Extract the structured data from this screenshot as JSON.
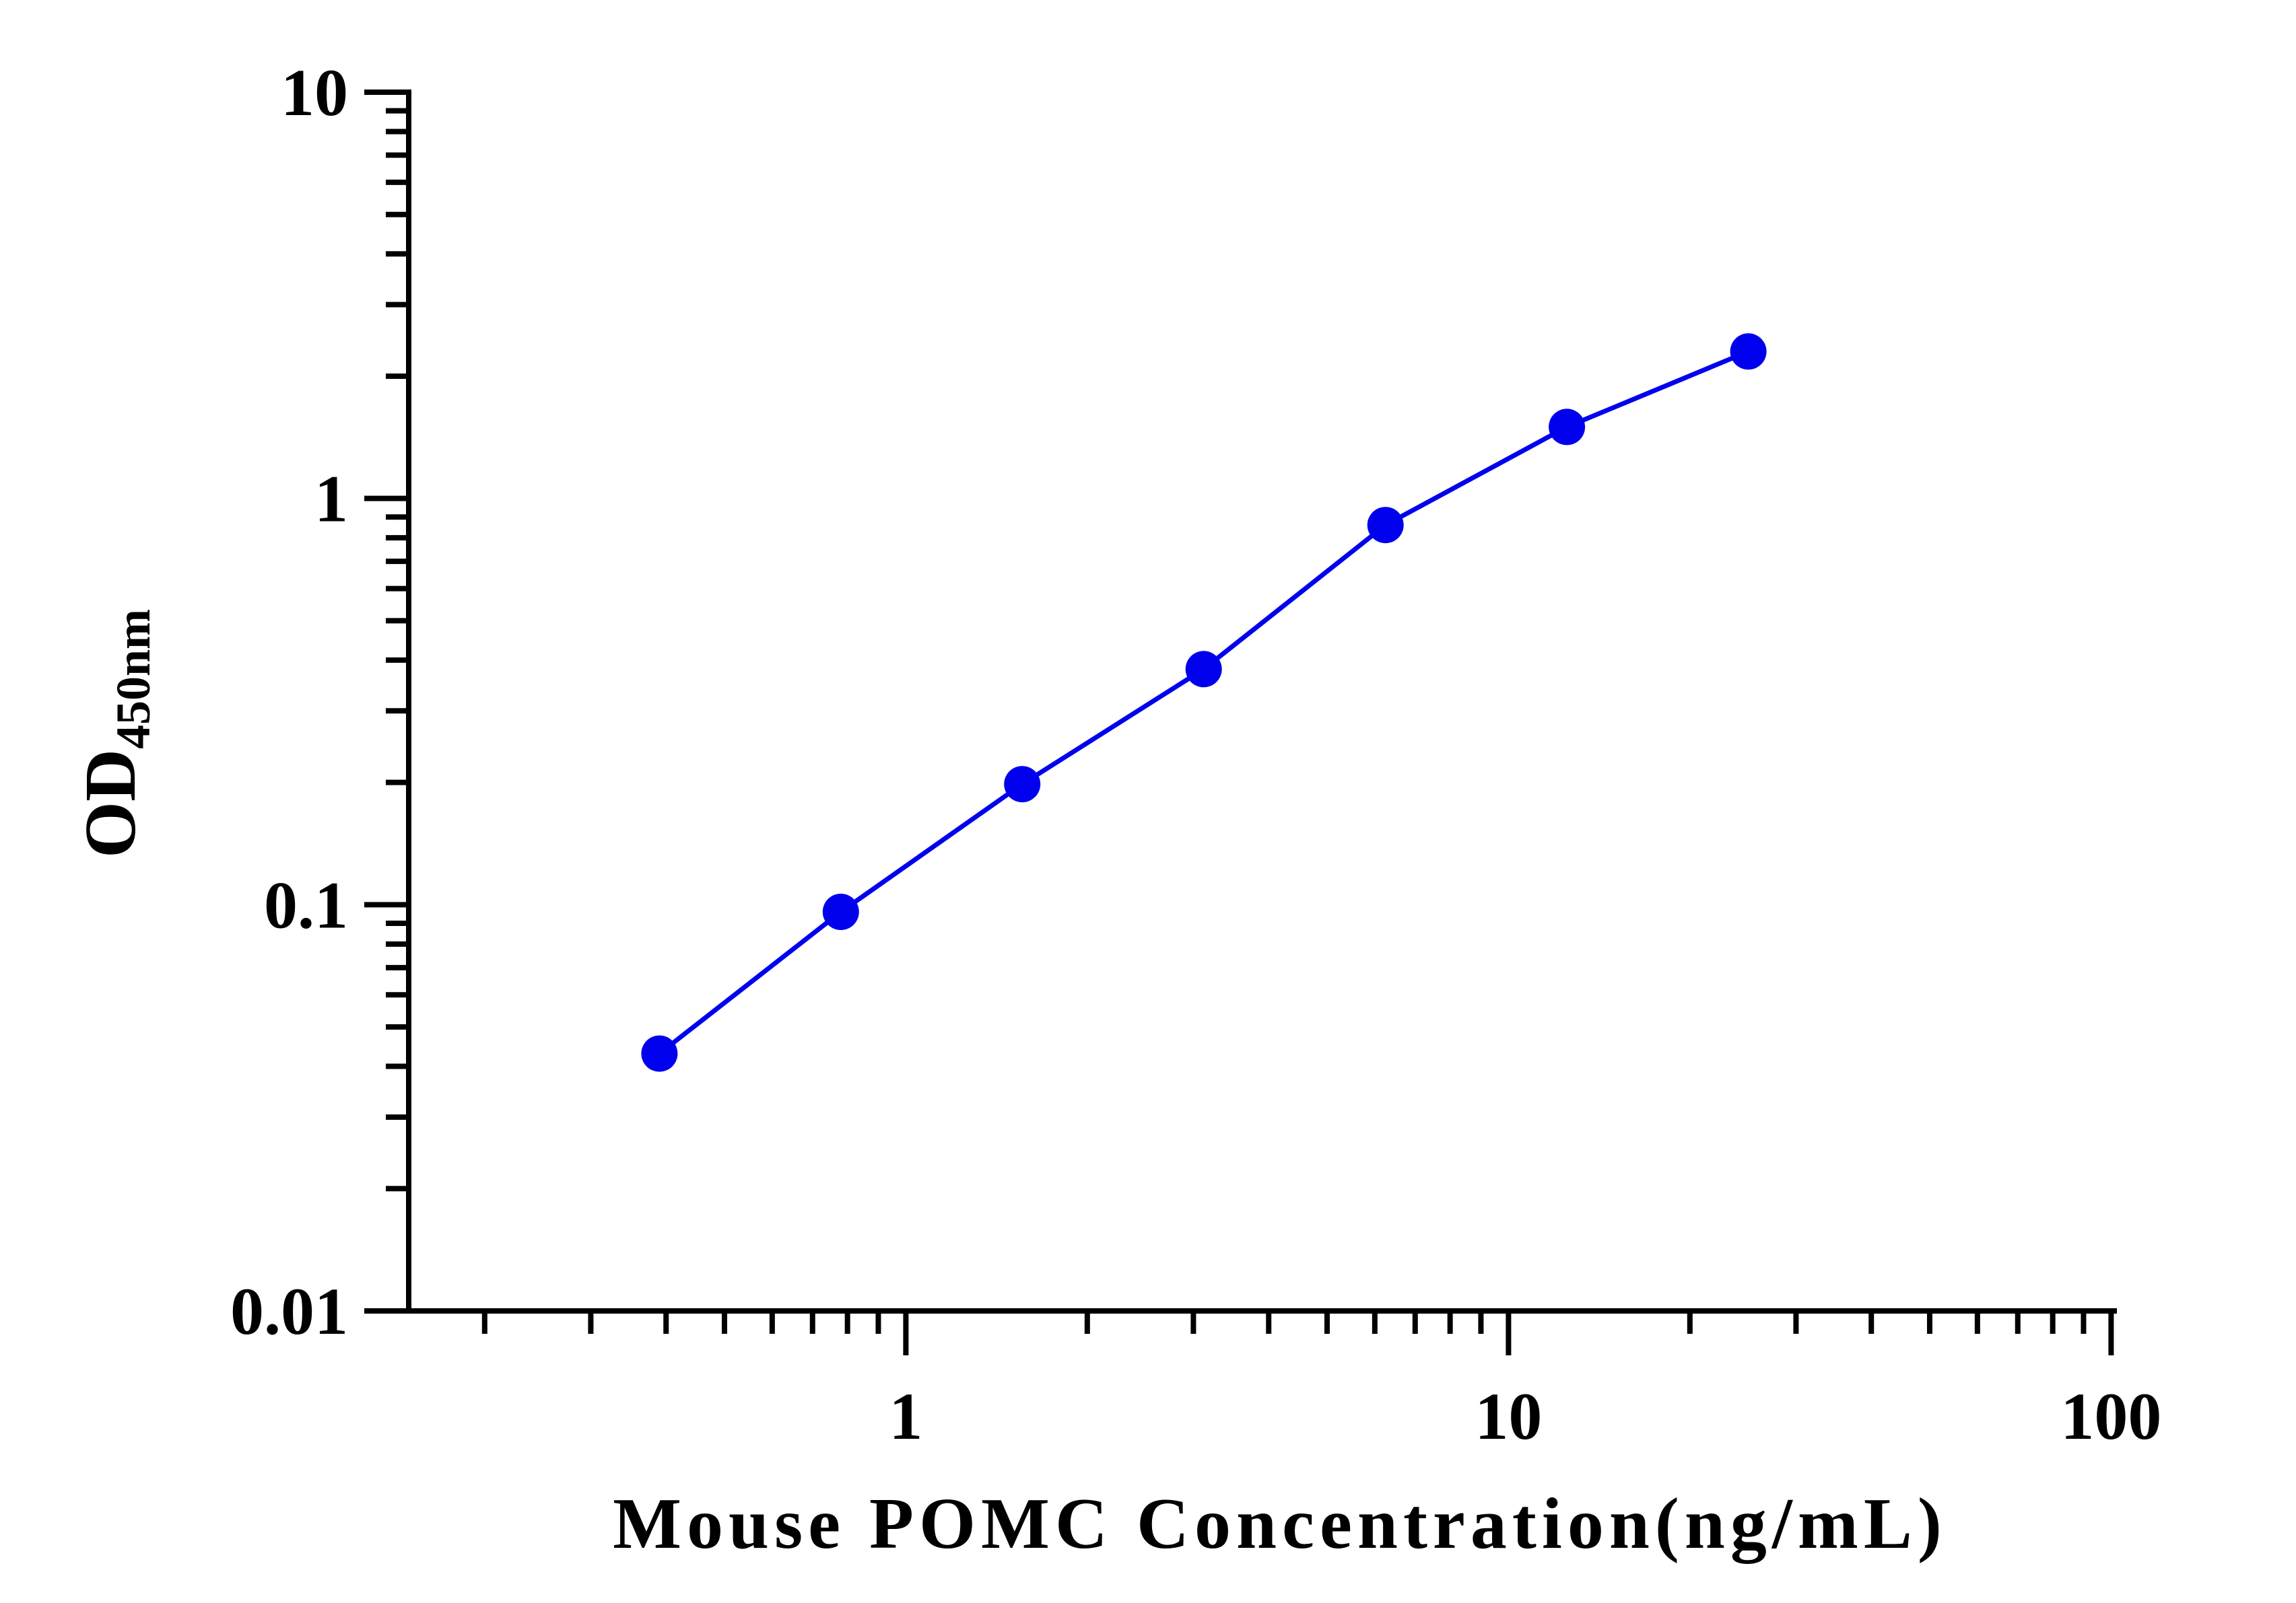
{
  "chart_data": {
    "type": "line",
    "xscale": "log",
    "yscale": "log",
    "xlim": [
      0.15,
      100
    ],
    "ylim": [
      0.01,
      10
    ],
    "xticks": [
      1,
      10,
      100
    ],
    "xtick_labels": [
      "1",
      "10",
      "100"
    ],
    "yticks": [
      0.01,
      0.1,
      1,
      10
    ],
    "ytick_labels": [
      "0.01",
      "0.1",
      "1",
      "10"
    ],
    "xlabel": "Mouse POMC Concentration(ng/mL)",
    "ylabel": "OD",
    "ylabel_sub": "450nm",
    "grid": false,
    "series": [
      {
        "color": "#0000ee",
        "x": [
          0.39,
          0.78,
          1.56,
          3.12,
          6.25,
          12.5,
          25
        ],
        "y": [
          0.043,
          0.096,
          0.198,
          0.38,
          0.86,
          1.5,
          2.3
        ]
      }
    ]
  }
}
